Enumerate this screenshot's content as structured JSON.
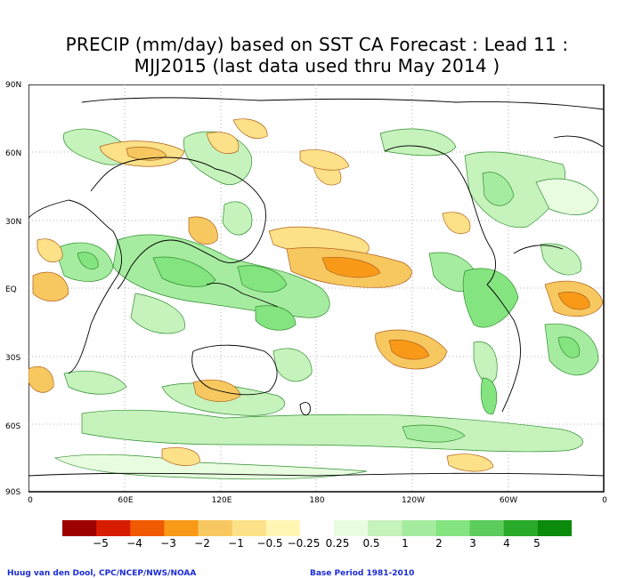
{
  "title": {
    "line1": "PRECIP (mm/day) based on SST CA Forecast : Lead 11 :",
    "line2": "MJJ2015 (last data used thru May 2014 )"
  },
  "lat_labels": [
    "90N",
    "60N",
    "30N",
    "EQ",
    "30S",
    "60S",
    "90S"
  ],
  "lon_labels": [
    "0",
    "60E",
    "120E",
    "180",
    "120W",
    "60W",
    "0"
  ],
  "colorbar": {
    "labels": [
      "−5",
      "−4",
      "−3",
      "−2",
      "−1",
      "−0.5",
      "−0.25",
      "0.25",
      "0.5",
      "1",
      "2",
      "3",
      "4",
      "5"
    ],
    "colors": [
      "#9e0000",
      "#d81c00",
      "#f05a00",
      "#f89a18",
      "#f8c860",
      "#fce188",
      "#fff6b4",
      "#ffffff",
      "#e8fce0",
      "#c6f2bc",
      "#a6eca0",
      "#84e480",
      "#5ccc5c",
      "#2aaa2a",
      "#0c8a0c"
    ]
  },
  "credits": {
    "left": "Huug van den Dool, CPC/NCEP/NWS/NOAA",
    "right": "Base Period 1981-2010"
  }
}
